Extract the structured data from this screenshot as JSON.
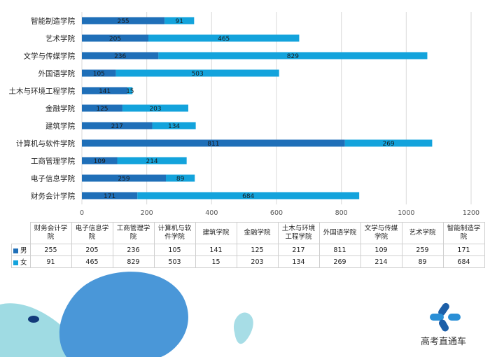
{
  "chart_data": {
    "type": "bar",
    "orientation": "horizontal",
    "stacked": true,
    "categories": [
      "智能制造学院",
      "艺术学院",
      "文学与传媒学院",
      "外国语学院",
      "土木与环境工程学院",
      "金融学院",
      "建筑学院",
      "计算机与软件学院",
      "工商管理学院",
      "电子信息学院",
      "财务会计学院"
    ],
    "series": [
      {
        "name": "男",
        "color": "#1f6fb8",
        "values": [
          255,
          205,
          236,
          105,
          141,
          125,
          217,
          811,
          109,
          259,
          171
        ]
      },
      {
        "name": "女",
        "color": "#13a3dc",
        "values": [
          91,
          465,
          829,
          503,
          15,
          203,
          134,
          269,
          214,
          89,
          684
        ]
      }
    ],
    "xlim": [
      0,
      1200
    ],
    "xticks": [
      "0",
      "200",
      "400",
      "600",
      "800",
      "1000",
      "1200"
    ],
    "grid": true,
    "legend": "data-table"
  },
  "table": {
    "headers": [
      "财务会计学\n院",
      "电子信息学\n院",
      "工商管理学\n院",
      "计算机与软\n件学院",
      "建筑学院",
      "金融学院",
      "土木与环境\n工程学院",
      "外国语学院",
      "文学与传媒\n学院",
      "艺术学院",
      "智能制造学\n院"
    ]
  },
  "brand": {
    "text": "高考直通车",
    "icon": "four-dot-logo-icon"
  }
}
